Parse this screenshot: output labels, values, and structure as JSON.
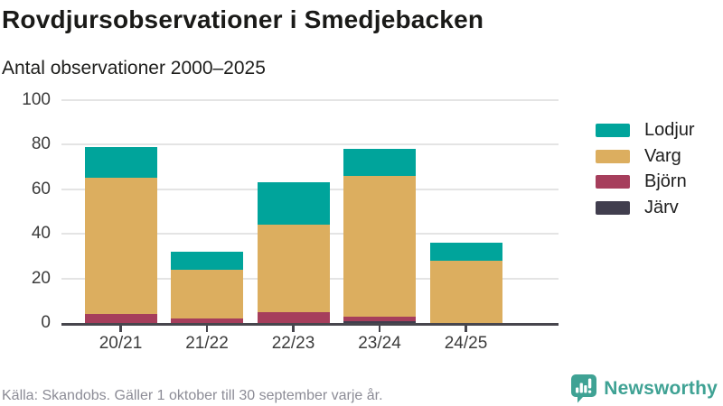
{
  "header": {
    "title": "Rovdjursobservationer i Smedjebacken",
    "subtitle": "Antal observationer 2000–2025"
  },
  "chart_data": {
    "type": "bar",
    "stacked": true,
    "title": "Rovdjursobservationer i Smedjebacken",
    "subtitle": "Antal observationer 2000–2025",
    "categories": [
      "20/21",
      "21/22",
      "22/23",
      "23/24",
      "24/25"
    ],
    "series": [
      {
        "name": "Järv",
        "color": "#413E4E",
        "values": [
          0,
          0,
          0,
          1,
          0
        ]
      },
      {
        "name": "Björn",
        "color": "#A63E5C",
        "values": [
          4,
          2,
          5,
          2,
          0
        ]
      },
      {
        "name": "Varg",
        "color": "#DCAE5F",
        "values": [
          61,
          22,
          39,
          63,
          28
        ]
      },
      {
        "name": "Lodjur",
        "color": "#00A49B",
        "values": [
          14,
          8,
          19,
          12,
          8
        ]
      }
    ],
    "totals": [
      79,
      32,
      63,
      78,
      36
    ],
    "ylim": [
      0,
      100
    ],
    "yticks": [
      0,
      20,
      40,
      60,
      80,
      100
    ],
    "legend": [
      "Lodjur",
      "Varg",
      "Björn",
      "Järv"
    ],
    "legend_position": "right",
    "grid": "horizontal"
  },
  "footer": {
    "source": "Källa: Skandobs. Gäller 1 oktober till 30 september varje år.",
    "brand": "Newsworthy"
  },
  "colors": {
    "lodjur_teal": "#00A49B",
    "varg_gold": "#DCAE5F",
    "bjorn_maroon": "#A63E5C",
    "jarv_dark": "#413E4E",
    "brand_teal": "#3FA294",
    "axis": "#47464D",
    "gridline": "#E4E4E4"
  }
}
